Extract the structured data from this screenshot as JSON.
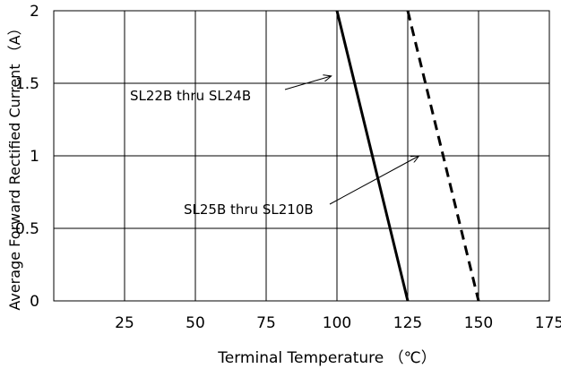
{
  "chart_data": {
    "type": "line",
    "xlabel": "Terminal Temperature （℃）",
    "ylabel": "Average Forward Rectified Current （A）",
    "xlim": [
      25,
      175
    ],
    "ylim": [
      0,
      2
    ],
    "x_ticks": [
      "25",
      "50",
      "75",
      "100",
      "125",
      "150",
      "175"
    ],
    "y_ticks": [
      "0",
      "0.5",
      "1",
      "1.5",
      "2"
    ],
    "x_tick_values": [
      25,
      50,
      75,
      100,
      125,
      150,
      175
    ],
    "y_tick_values": [
      0,
      0.5,
      1,
      1.5,
      2
    ],
    "grid": true,
    "series": [
      {
        "name": "SL22B thru  SL24B",
        "style": "solid",
        "x": [
          100,
          125
        ],
        "y": [
          2,
          0
        ]
      },
      {
        "name": "SL25B thru  SL210B",
        "style": "dashed",
        "x": [
          125,
          150
        ],
        "y": [
          2,
          0
        ]
      }
    ],
    "annotations": [
      {
        "text": "SL22B thru  SL24B",
        "arrow_to": {
          "x": 98,
          "y": 1.55
        }
      },
      {
        "text": "SL25B thru  SL210B",
        "arrow_to": {
          "x": 129,
          "y": 1.0
        }
      }
    ]
  }
}
